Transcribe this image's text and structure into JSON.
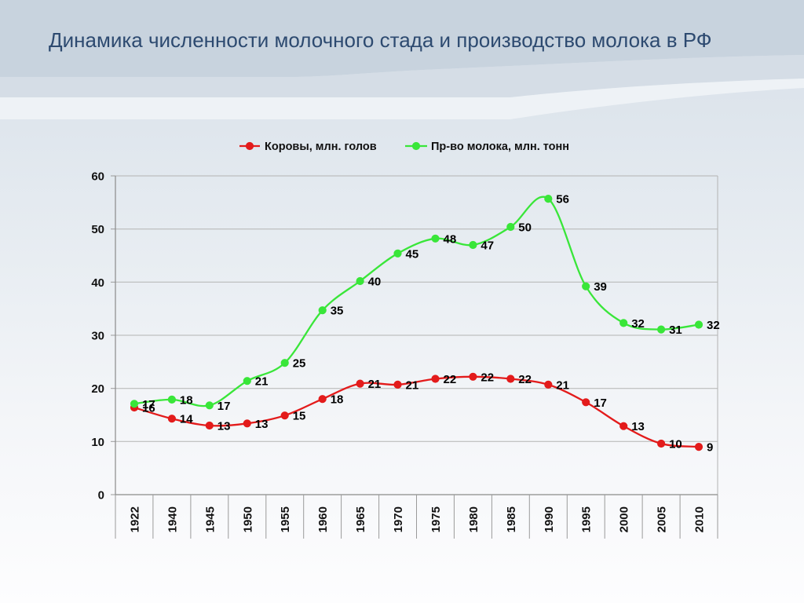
{
  "slide": {
    "title": "Динамика численности молочного стада и производство молока в РФ"
  },
  "chart_data": {
    "type": "line",
    "smooth": true,
    "markers": "circle",
    "grid": true,
    "legend": "top-center",
    "categories": [
      "1922",
      "1940",
      "1945",
      "1950",
      "1955",
      "1960",
      "1965",
      "1970",
      "1975",
      "1980",
      "1985",
      "1990",
      "1995",
      "2000",
      "2005",
      "2010"
    ],
    "ylim": [
      0,
      60
    ],
    "yticks": [
      0,
      10,
      20,
      30,
      40,
      50,
      60
    ],
    "series": [
      {
        "name": "Коровы, млн. голов",
        "color": "#e31b1b",
        "values": [
          16.4,
          14.3,
          13.0,
          13.4,
          14.9,
          18.0,
          20.9,
          20.7,
          21.8,
          22.2,
          21.8,
          20.7,
          17.4,
          12.9,
          9.6,
          9.0
        ],
        "labels": [
          "16",
          "14",
          "13",
          "13",
          "15",
          "18",
          "21",
          "21",
          "22",
          "22",
          "22",
          "21",
          "17",
          "13",
          "10",
          "9"
        ]
      },
      {
        "name": "Пр-во молока, млн. тонн",
        "color": "#39e639",
        "values": [
          17.1,
          17.9,
          16.8,
          21.4,
          24.8,
          34.7,
          40.2,
          45.4,
          48.2,
          47.0,
          50.4,
          55.7,
          39.2,
          32.3,
          31.1,
          32.0
        ],
        "labels": [
          "17",
          "18",
          "17",
          "21",
          "25",
          "35",
          "40",
          "45",
          "48",
          "47",
          "50",
          "56",
          "39",
          "32",
          "31",
          "32"
        ]
      }
    ]
  }
}
